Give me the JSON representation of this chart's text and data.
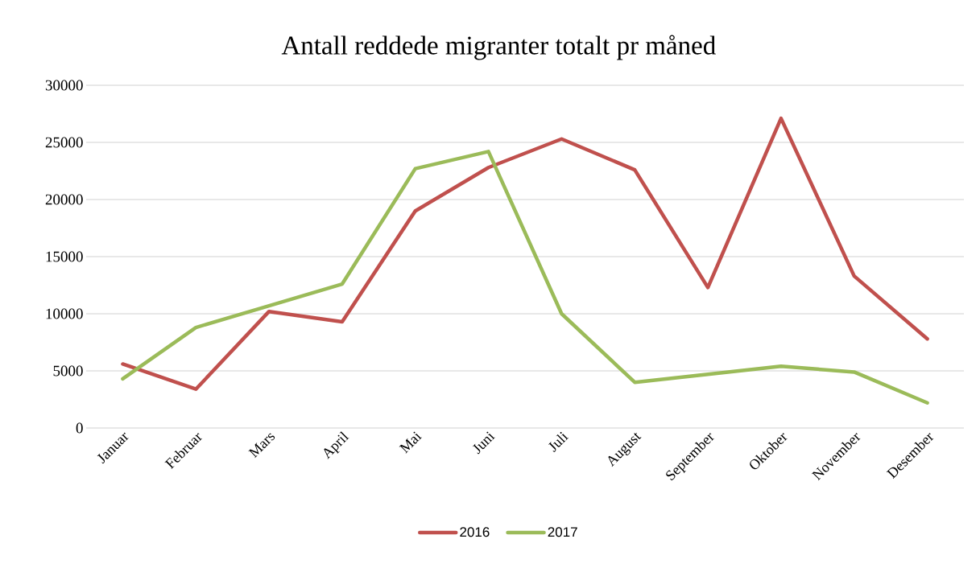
{
  "chart_data": {
    "type": "line",
    "title": "Antall reddede migranter totalt pr måned",
    "categories": [
      "Januar",
      "Februar",
      "Mars",
      "April",
      "Mai",
      "Juni",
      "Juli",
      "August",
      "September",
      "Oktober",
      "November",
      "Desember"
    ],
    "series": [
      {
        "name": "2016",
        "color": "#c0504d",
        "values": [
          5600,
          3400,
          10200,
          9300,
          19000,
          22800,
          25300,
          22600,
          12300,
          27100,
          13300,
          7800
        ]
      },
      {
        "name": "2017",
        "color": "#9bbb59",
        "values": [
          4300,
          8800,
          10700,
          12600,
          22700,
          24200,
          10000,
          4000,
          4700,
          5400,
          4900,
          2200
        ]
      }
    ],
    "ylim": [
      0,
      30000
    ],
    "yticks": [
      0,
      5000,
      10000,
      15000,
      20000,
      25000,
      30000
    ],
    "grid": "y",
    "legend": "bottom",
    "marker": "none",
    "line_style": "solid"
  }
}
